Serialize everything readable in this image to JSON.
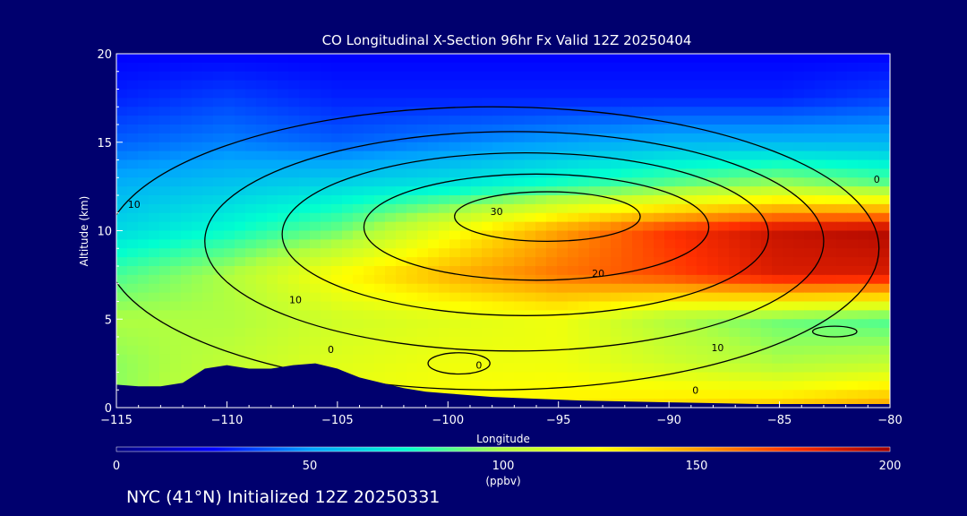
{
  "chart_data": {
    "type": "heatmap",
    "title": "CO Longitudinal X-Section 96hr  Fx Valid 12Z 20250404",
    "xlabel": "Longitude",
    "ylabel": "Altitude (km)",
    "xlim": [
      -115,
      -80
    ],
    "ylim": [
      0,
      20
    ],
    "x_ticks": [
      -115,
      -110,
      -105,
      -100,
      -95,
      -90,
      -85,
      -80
    ],
    "x_tick_labels": [
      "−115",
      "−110",
      "−105",
      "−100",
      "−95",
      "−90",
      "−85",
      "−80"
    ],
    "y_ticks": [
      0,
      5,
      10,
      15,
      20
    ],
    "y_tick_labels": [
      "0",
      "5",
      "10",
      "15",
      "20"
    ],
    "colorbar": {
      "min": 0,
      "max": 200,
      "ticks": [
        0,
        50,
        100,
        150,
        200
      ],
      "tick_labels": [
        "0",
        "50",
        "100",
        "150",
        "200"
      ],
      "units": "(ppbv)",
      "colormap": [
        "#000080",
        "#0000ff",
        "#00a0ff",
        "#00ffd0",
        "#b0ff40",
        "#ffff00",
        "#ffa000",
        "#ff3000",
        "#a00000"
      ]
    },
    "co_field_ppbv": {
      "x": [
        -115,
        -110,
        -105,
        -100,
        -95,
        -90,
        -85,
        -80
      ],
      "y": [
        0,
        2.5,
        5,
        7.5,
        10,
        12.5,
        15,
        17.5,
        20
      ],
      "values": [
        [
          95,
          110,
          120,
          125,
          130,
          135,
          140,
          150
        ],
        [
          95,
          105,
          115,
          120,
          120,
          110,
          100,
          105
        ],
        [
          100,
          100,
          110,
          115,
          120,
          100,
          90,
          85
        ],
        [
          85,
          100,
          125,
          145,
          160,
          170,
          185,
          185
        ],
        [
          65,
          75,
          90,
          120,
          150,
          175,
          190,
          195
        ],
        [
          55,
          60,
          65,
          70,
          80,
          90,
          100,
          90
        ],
        [
          40,
          45,
          40,
          45,
          50,
          55,
          55,
          55
        ],
        [
          30,
          35,
          30,
          30,
          30,
          30,
          30,
          35
        ],
        [
          25,
          25,
          25,
          25,
          25,
          25,
          25,
          25
        ]
      ]
    },
    "terrain_km": {
      "x": [
        -115,
        -114,
        -113,
        -112,
        -111,
        -110,
        -109,
        -108,
        -107,
        -106,
        -105,
        -104,
        -103,
        -102,
        -101,
        -100,
        -98,
        -96,
        -94,
        -92,
        -90,
        -88,
        -86,
        -84,
        -82,
        -80
      ],
      "y": [
        1.3,
        1.2,
        1.2,
        1.4,
        2.2,
        2.4,
        2.2,
        2.2,
        2.4,
        2.5,
        2.2,
        1.7,
        1.4,
        1.1,
        0.9,
        0.8,
        0.6,
        0.5,
        0.4,
        0.35,
        0.3,
        0.25,
        0.2,
        0.2,
        0.2,
        0.2
      ]
    },
    "contour_labels": [
      {
        "text": "10",
        "x": -114.2,
        "y": 11.5
      },
      {
        "text": "10",
        "x": -106.9,
        "y": 6.1
      },
      {
        "text": "0",
        "x": -105.3,
        "y": 3.3
      },
      {
        "text": "0",
        "x": -98.6,
        "y": 2.4
      },
      {
        "text": "30",
        "x": -97.8,
        "y": 11.1
      },
      {
        "text": "20",
        "x": -93.2,
        "y": 7.6
      },
      {
        "text": "10",
        "x": -87.8,
        "y": 3.4
      },
      {
        "text": "0",
        "x": -88.8,
        "y": 1.0
      },
      {
        "text": "0",
        "x": -80.6,
        "y": 12.9
      }
    ]
  },
  "footer": "NYC (41°N) Initialized 12Z 20250331"
}
